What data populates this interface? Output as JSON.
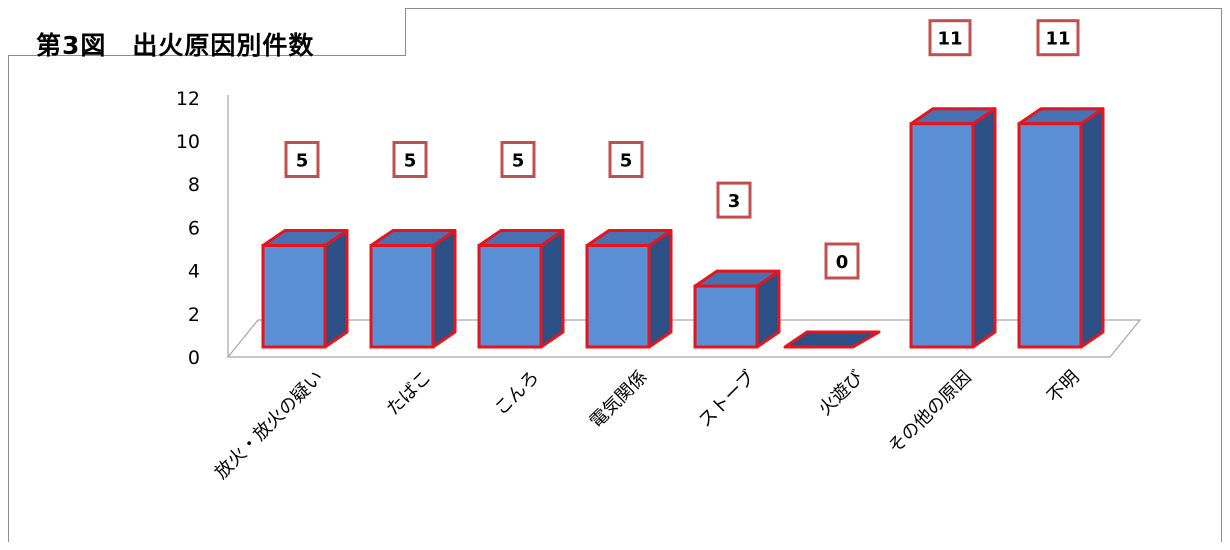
{
  "chart_data": {
    "type": "bar",
    "title": "第3図　出火原因別件数",
    "categories": [
      "放火・放火の疑い",
      "たばこ",
      "こんろ",
      "電気関係",
      "ストーブ",
      "火遊び",
      "その他の原因",
      "不明"
    ],
    "values": [
      5,
      5,
      5,
      5,
      3,
      0,
      11,
      11
    ],
    "yticks": [
      "0",
      "2",
      "4",
      "6",
      "8",
      "10",
      "12"
    ],
    "data_labels": [
      "5",
      "5",
      "5",
      "5",
      "3",
      "0",
      "11",
      "11"
    ],
    "ylim": [
      0,
      12
    ],
    "grid": false,
    "legend": "none",
    "style": "3d-column"
  },
  "colors": {
    "bar_front": "#5b8fd6",
    "bar_side": "#2c4f86",
    "bar_top": "#4672b4",
    "bar_outline": "#e8141c",
    "label_border": "#c0504d",
    "axis": "#a6a6a6"
  }
}
